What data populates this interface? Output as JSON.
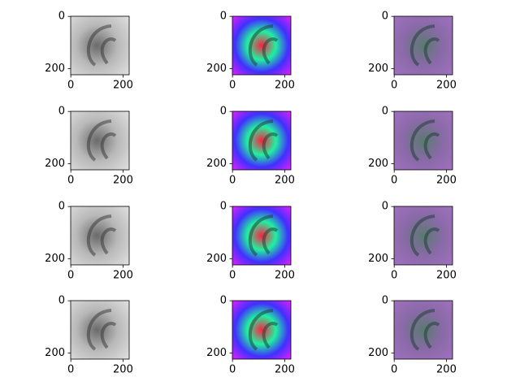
{
  "chart_data": [
    {
      "type": "image",
      "colormap": "gray",
      "xlim": [
        -0.5,
        223.5
      ],
      "ylim": [
        223.5,
        -0.5
      ],
      "xticks": [
        0,
        200
      ],
      "yticks": [
        0,
        200
      ]
    },
    {
      "type": "image",
      "colormap": "hsv",
      "xlim": [
        -0.5,
        223.5
      ],
      "ylim": [
        223.5,
        -0.5
      ],
      "xticks": [
        0,
        200
      ],
      "yticks": [
        0,
        200
      ]
    },
    {
      "type": "image",
      "colormap": "overlay",
      "xlim": [
        -0.5,
        223.5
      ],
      "ylim": [
        223.5,
        -0.5
      ],
      "xticks": [
        0,
        200
      ],
      "yticks": [
        0,
        200
      ]
    },
    {
      "type": "image",
      "colormap": "gray",
      "xlim": [
        -0.5,
        223.5
      ],
      "ylim": [
        223.5,
        -0.5
      ],
      "xticks": [
        0,
        200
      ],
      "yticks": [
        0,
        200
      ]
    },
    {
      "type": "image",
      "colormap": "hsv",
      "xlim": [
        -0.5,
        223.5
      ],
      "ylim": [
        223.5,
        -0.5
      ],
      "xticks": [
        0,
        200
      ],
      "yticks": [
        0,
        200
      ]
    },
    {
      "type": "image",
      "colormap": "overlay",
      "xlim": [
        -0.5,
        223.5
      ],
      "ylim": [
        223.5,
        -0.5
      ],
      "xticks": [
        0,
        200
      ],
      "yticks": [
        0,
        200
      ]
    },
    {
      "type": "image",
      "colormap": "gray",
      "xlim": [
        -0.5,
        223.5
      ],
      "ylim": [
        223.5,
        -0.5
      ],
      "xticks": [
        0,
        200
      ],
      "yticks": [
        0,
        200
      ]
    },
    {
      "type": "image",
      "colormap": "hsv",
      "xlim": [
        -0.5,
        223.5
      ],
      "ylim": [
        223.5,
        -0.5
      ],
      "xticks": [
        0,
        200
      ],
      "yticks": [
        0,
        200
      ]
    },
    {
      "type": "image",
      "colormap": "overlay",
      "xlim": [
        -0.5,
        223.5
      ],
      "ylim": [
        223.5,
        -0.5
      ],
      "xticks": [
        0,
        200
      ],
      "yticks": [
        0,
        200
      ]
    },
    {
      "type": "image",
      "colormap": "gray",
      "xlim": [
        -0.5,
        223.5
      ],
      "ylim": [
        223.5,
        -0.5
      ],
      "xticks": [
        0,
        200
      ],
      "yticks": [
        0,
        200
      ]
    },
    {
      "type": "image",
      "colormap": "hsv",
      "xlim": [
        -0.5,
        223.5
      ],
      "ylim": [
        223.5,
        -0.5
      ],
      "xticks": [
        0,
        200
      ],
      "yticks": [
        0,
        200
      ]
    },
    {
      "type": "image",
      "colormap": "overlay",
      "xlim": [
        -0.5,
        223.5
      ],
      "ylim": [
        223.5,
        -0.5
      ],
      "xticks": [
        0,
        200
      ],
      "yticks": [
        0,
        200
      ]
    }
  ]
}
